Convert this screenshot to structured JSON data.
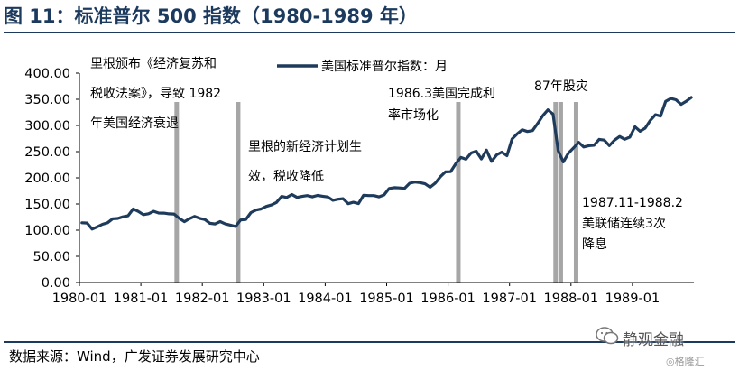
{
  "title": "图 11：标准普尔 500 指数（1980-1989 年）",
  "source": "数据来源：Wind，广发证券发展研究中心",
  "brand": "静观金融",
  "watermark": "◎格隆汇",
  "colors": {
    "line": "#1f3b5c",
    "event_bar": "#a6a6a6",
    "title": "#1c3a5e"
  },
  "chart_data": {
    "type": "line",
    "x_tick_labels": [
      "1980-01",
      "1981-01",
      "1982-01",
      "1983-01",
      "1984-01",
      "1985-01",
      "1986-01",
      "1987-01",
      "1988-01",
      "1989-01"
    ],
    "y_tick_labels": [
      "0.00",
      "50.00",
      "100.00",
      "150.00",
      "200.00",
      "250.00",
      "300.00",
      "350.00",
      "400.00"
    ],
    "ylim": [
      0,
      400
    ],
    "x_range": [
      "1980-01",
      "1989-12"
    ],
    "grid": false,
    "legend_position": "top-right",
    "series": [
      {
        "name": "美国标准普尔指数：月",
        "x": [
          "1980-01",
          "1980-02",
          "1980-03",
          "1980-04",
          "1980-05",
          "1980-06",
          "1980-07",
          "1980-08",
          "1980-09",
          "1980-10",
          "1980-11",
          "1980-12",
          "1981-01",
          "1981-02",
          "1981-03",
          "1981-04",
          "1981-05",
          "1981-06",
          "1981-07",
          "1981-08",
          "1981-09",
          "1981-10",
          "1981-11",
          "1981-12",
          "1982-01",
          "1982-02",
          "1982-03",
          "1982-04",
          "1982-05",
          "1982-06",
          "1982-07",
          "1982-08",
          "1982-09",
          "1982-10",
          "1982-11",
          "1982-12",
          "1983-01",
          "1983-02",
          "1983-03",
          "1983-04",
          "1983-05",
          "1983-06",
          "1983-07",
          "1983-08",
          "1983-09",
          "1983-10",
          "1983-11",
          "1983-12",
          "1984-01",
          "1984-02",
          "1984-03",
          "1984-04",
          "1984-05",
          "1984-06",
          "1984-07",
          "1984-08",
          "1984-09",
          "1984-10",
          "1984-11",
          "1984-12",
          "1985-01",
          "1985-02",
          "1985-03",
          "1985-04",
          "1985-05",
          "1985-06",
          "1985-07",
          "1985-08",
          "1985-09",
          "1985-10",
          "1985-11",
          "1985-12",
          "1986-01",
          "1986-02",
          "1986-03",
          "1986-04",
          "1986-05",
          "1986-06",
          "1986-07",
          "1986-08",
          "1986-09",
          "1986-10",
          "1986-11",
          "1986-12",
          "1987-01",
          "1987-02",
          "1987-03",
          "1987-04",
          "1987-05",
          "1987-06",
          "1987-07",
          "1987-08",
          "1987-09",
          "1987-10",
          "1987-11",
          "1987-12",
          "1988-01",
          "1988-02",
          "1988-03",
          "1988-04",
          "1988-05",
          "1988-06",
          "1988-07",
          "1988-08",
          "1988-09",
          "1988-10",
          "1988-11",
          "1988-12",
          "1989-01",
          "1989-02",
          "1989-03",
          "1989-04",
          "1989-05",
          "1989-06",
          "1989-07",
          "1989-08",
          "1989-09",
          "1989-10",
          "1989-11",
          "1989-12"
        ],
        "values": [
          114.2,
          113.7,
          102.1,
          106.3,
          111.2,
          114.2,
          121.7,
          122.4,
          125.5,
          127.5,
          140.5,
          135.8,
          129.6,
          131.3,
          136.0,
          132.8,
          132.6,
          131.2,
          130.9,
          122.8,
          116.2,
          121.9,
          126.4,
          122.6,
          120.4,
          113.1,
          111.96,
          116.4,
          111.9,
          109.6,
          107.1,
          119.5,
          120.4,
          133.7,
          138.5,
          140.6,
          145.3,
          148.1,
          152.96,
          164.4,
          162.4,
          168.1,
          162.6,
          164.4,
          166.1,
          163.6,
          166.4,
          164.9,
          163.4,
          157.1,
          159.2,
          160.1,
          150.6,
          153.2,
          150.7,
          166.7,
          166.1,
          166.1,
          163.6,
          167.2,
          179.6,
          181.2,
          180.7,
          179.8,
          189.6,
          191.9,
          190.9,
          188.6,
          182.1,
          189.8,
          202.2,
          211.3,
          211.8,
          226.9,
          238.9,
          235.5,
          247.4,
          250.8,
          236.1,
          252.9,
          231.3,
          243.98,
          249.2,
          242.2,
          274.1,
          284.2,
          291.7,
          288.4,
          290.1,
          304.0,
          318.7,
          329.8,
          321.8,
          251.8,
          230.3,
          247.1,
          257.1,
          267.8,
          258.9,
          261.3,
          262.2,
          273.5,
          272.0,
          261.5,
          271.9,
          278.97,
          273.7,
          277.7,
          297.5,
          288.9,
          294.9,
          309.6,
          320.5,
          317.98,
          346.1,
          351.5,
          349.2,
          340.4,
          345.99,
          353.4
        ]
      }
    ],
    "event_markers": [
      {
        "date": "1981-08",
        "label": "里根颁布《经济复苏和税收法案》，导致 1982 年美国经济衰退"
      },
      {
        "date": "1982-08",
        "label": "里根的新经济计划生效，税收降低"
      },
      {
        "date": "1986-03",
        "label": "1986.3美国完成利率市场化"
      },
      {
        "date": "1987-10",
        "label": "87年股灾"
      },
      {
        "date": "1987-11",
        "label": "1987.11-1988.2美联储连续3次降息"
      },
      {
        "date": "1988-02",
        "label": ""
      }
    ],
    "annotations": {
      "a1_line1": "里根颁布《经济复苏和",
      "a1_line2": "税收法案》，导致 1982",
      "a1_line3": "年美国经济衰退",
      "a2_line1": "里根的新经济计划生",
      "a2_line2": "效，税收降低",
      "a3_line1": "1986.3美国完成利",
      "a3_line2": "率市场化",
      "a4_line1": "87年股灾",
      "a5_line1": "1987.11-1988.2",
      "a5_line2": "美联储连续3次",
      "a5_line3": "降息"
    }
  }
}
